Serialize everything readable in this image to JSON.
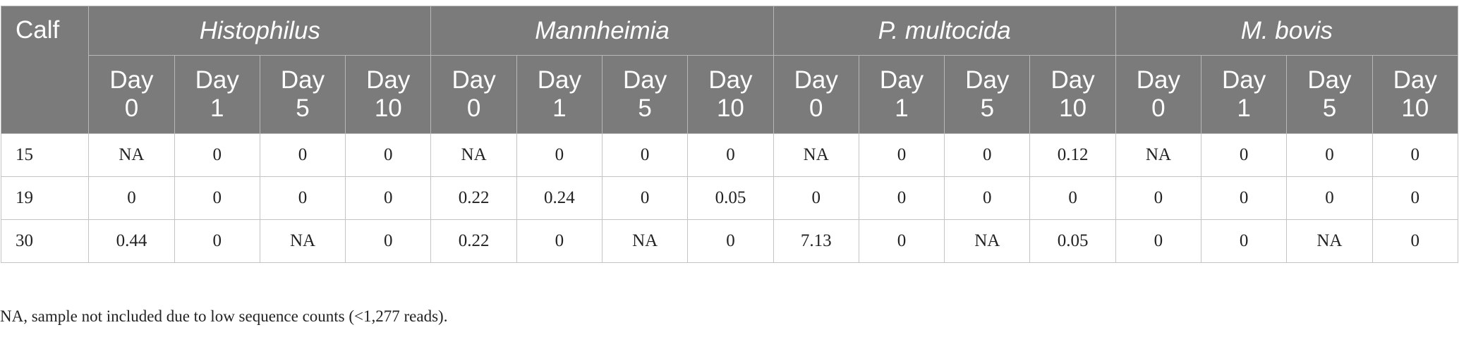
{
  "table": {
    "calf_header": "Calf",
    "groups": [
      {
        "name": "Histophilus",
        "days": [
          {
            "word": "Day",
            "num": "0"
          },
          {
            "word": "Day",
            "num": "1"
          },
          {
            "word": "Day",
            "num": "5"
          },
          {
            "word": "Day",
            "num": "10"
          }
        ]
      },
      {
        "name": "Mannheimia",
        "days": [
          {
            "word": "Day",
            "num": "0"
          },
          {
            "word": "Day",
            "num": "1"
          },
          {
            "word": "Day",
            "num": "5"
          },
          {
            "word": "Day",
            "num": "10"
          }
        ]
      },
      {
        "name": "P. multocida",
        "days": [
          {
            "word": "Day",
            "num": "0"
          },
          {
            "word": "Day",
            "num": "1"
          },
          {
            "word": "Day",
            "num": "5"
          },
          {
            "word": "Day",
            "num": "10"
          }
        ]
      },
      {
        "name": "M. bovis",
        "days": [
          {
            "word": "Day",
            "num": "0"
          },
          {
            "word": "Day",
            "num": "1"
          },
          {
            "word": "Day",
            "num": "5"
          },
          {
            "word": "Day",
            "num": "10"
          }
        ]
      }
    ],
    "rows": [
      {
        "calf": "15",
        "values": [
          "NA",
          "0",
          "0",
          "0",
          "NA",
          "0",
          "0",
          "0",
          "NA",
          "0",
          "0",
          "0.12",
          "NA",
          "0",
          "0",
          "0"
        ]
      },
      {
        "calf": "19",
        "values": [
          "0",
          "0",
          "0",
          "0",
          "0.22",
          "0.24",
          "0",
          "0.05",
          "0",
          "0",
          "0",
          "0",
          "0",
          "0",
          "0",
          "0"
        ]
      },
      {
        "calf": "30",
        "values": [
          "0.44",
          "0",
          "NA",
          "0",
          "0.22",
          "0",
          "NA",
          "0",
          "7.13",
          "0",
          "NA",
          "0.05",
          "0",
          "0",
          "NA",
          "0"
        ]
      }
    ]
  },
  "footnote": "NA, sample not included due to low sequence counts (<1,277 reads)."
}
